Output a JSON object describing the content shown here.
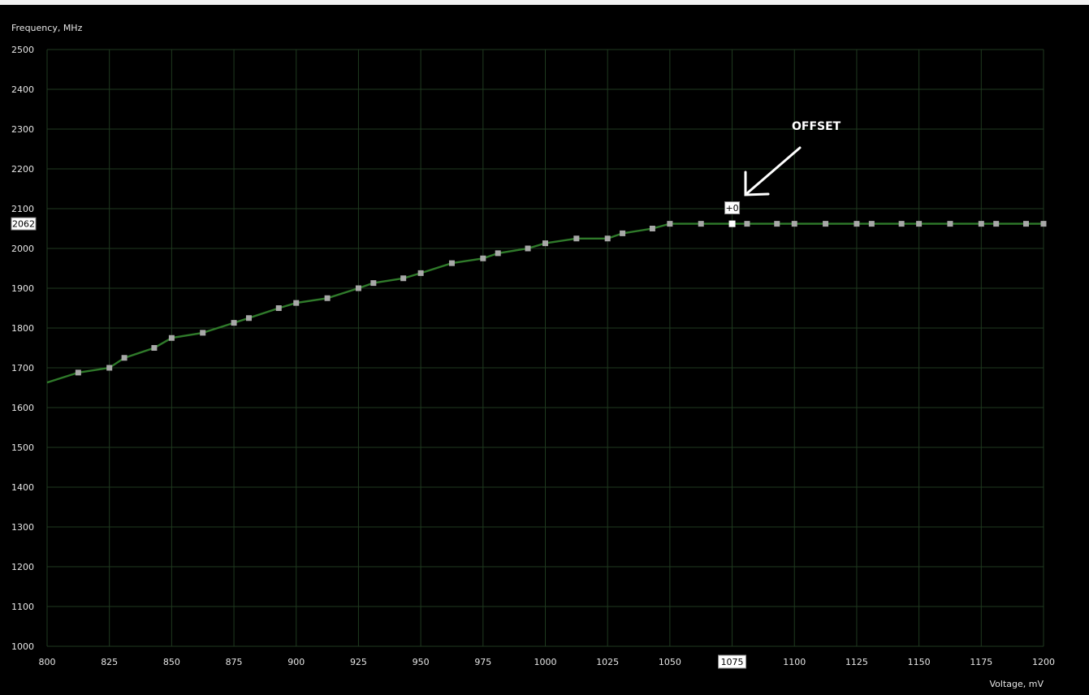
{
  "chart_data": {
    "type": "line",
    "ylabel": "Frequency, MHz",
    "xlabel": "Voltage, mV",
    "xlim": [
      800,
      1200
    ],
    "ylim": [
      1000,
      2500
    ],
    "x_ticks": [
      800,
      825,
      850,
      875,
      900,
      925,
      950,
      975,
      1000,
      1025,
      1050,
      1075,
      1100,
      1125,
      1150,
      1175,
      1200
    ],
    "y_ticks": [
      1000,
      1100,
      1200,
      1300,
      1400,
      1500,
      1600,
      1700,
      1800,
      1900,
      2000,
      2100,
      2200,
      2300,
      2400,
      2500
    ],
    "grid": true,
    "x": [
      800,
      812.5,
      825,
      831,
      843,
      850,
      862.5,
      875,
      881,
      893,
      900,
      912.5,
      925,
      931,
      943,
      950,
      962.5,
      975,
      981,
      993,
      1000,
      1012.5,
      1025,
      1031,
      1043,
      1050,
      1062.5,
      1075,
      1081,
      1093,
      1100,
      1112.5,
      1125,
      1131,
      1143,
      1150,
      1162.5,
      1175,
      1181,
      1193,
      1200
    ],
    "y": [
      1663,
      1688,
      1700,
      1725,
      1750,
      1775,
      1788,
      1813,
      1825,
      1850,
      1863,
      1875,
      1900,
      1913,
      1925,
      1938,
      1963,
      1975,
      1988,
      2000,
      2013,
      2025,
      2025,
      2038,
      2050,
      2062,
      2062,
      2062,
      2062,
      2062,
      2062,
      2062,
      2062,
      2062,
      2062,
      2062,
      2062,
      2062,
      2062,
      2062,
      2062
    ],
    "selected": {
      "x": 1075,
      "y": 2062,
      "x_label": "1075",
      "y_label": "2062",
      "offset_label": "+0"
    },
    "annotation": "OFFSET",
    "colors": {
      "background": "#000000",
      "grid": "#1f3a1f",
      "curve": "#2f7a2a",
      "point": "#a8a8a8",
      "selected_point": "#ffffff",
      "text": "#e6e6e6"
    }
  }
}
